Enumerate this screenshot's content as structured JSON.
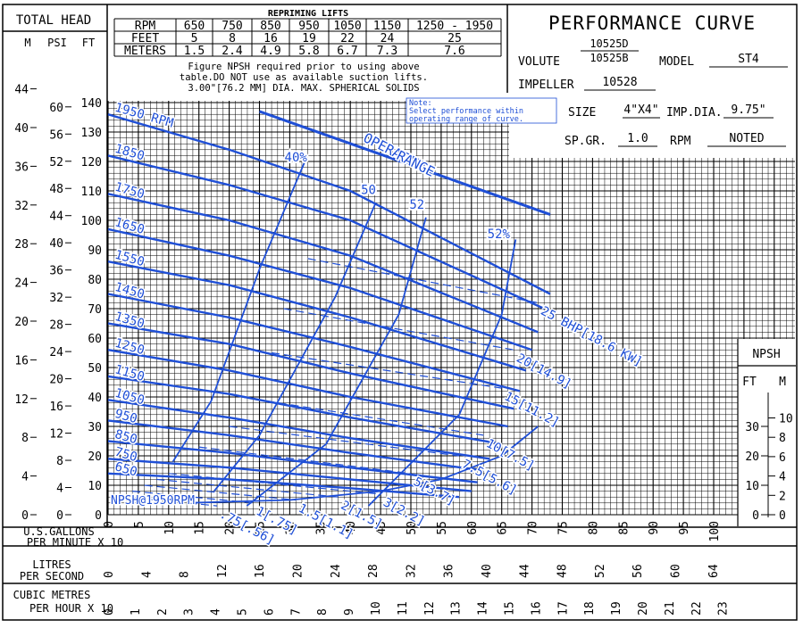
{
  "chart_data": {
    "type": "line",
    "title": "PERFORMANCE CURVE",
    "xlabel": "U.S.GALLONS PER MINUTE X 10",
    "ylabel": "TOTAL HEAD",
    "header": {
      "total_head": "TOTAL HEAD",
      "unit_m": "M",
      "unit_psi": "PSI",
      "unit_ft": "FT",
      "npsh": "NPSH",
      "npsh_ft": "FT",
      "npsh_m": "M"
    },
    "repriming": {
      "title": "REPRIMING LIFTS",
      "rows": [
        [
          "RPM",
          "650",
          "750",
          "850",
          "950",
          "1050",
          "1150",
          "1250 - 1950"
        ],
        [
          "FEET",
          "5",
          "8",
          "16",
          "19",
          "22",
          "24",
          "25"
        ],
        [
          "METERS",
          "1.5",
          "2.4",
          "4.9",
          "5.8",
          "6.7",
          "7.3",
          "7.6"
        ]
      ],
      "note": [
        "Figure NPSH required prior to using above",
        "table.DO NOT use as available suction lifts.",
        "3.00\"[76.2 MM] DIA. MAX. SPHERICAL SOLIDS"
      ]
    },
    "info": {
      "volute_label": "VOLUTE",
      "volute_top": "10525D",
      "volute_bottom": "10525B",
      "model_label": "MODEL",
      "model": "ST4",
      "impeller_label": "IMPELLER",
      "impeller": "10528",
      "size_label": "SIZE",
      "size": "4\"X4\"",
      "impdia_label": "IMP.DIA.",
      "impdia": "9.75\"",
      "spgr_label": "SP.GR.",
      "spgr": "1.0",
      "rpm_label": "RPM",
      "rpm": "NOTED"
    },
    "note_box": [
      "Note:",
      "Select performance within",
      "operating range of curve."
    ],
    "axes": {
      "x_gpm": {
        "ticks": [
          0,
          5,
          10,
          15,
          20,
          25,
          30,
          35,
          40,
          45,
          50,
          55,
          60,
          65,
          70,
          75,
          80,
          85,
          90,
          95,
          100
        ],
        "range": [
          0,
          100
        ]
      },
      "x_lps": {
        "label": [
          "LITRES",
          "PER SECOND"
        ],
        "ticks": [
          0,
          4,
          8,
          12,
          16,
          20,
          24,
          28,
          32,
          36,
          40,
          44,
          48,
          52,
          56,
          60,
          64
        ]
      },
      "x_m3h": {
        "label": [
          "CUBIC METRES",
          "PER HOUR X 10"
        ],
        "ticks": [
          0,
          1,
          2,
          3,
          4,
          5,
          6,
          7,
          8,
          9,
          10,
          11,
          12,
          13,
          14,
          15,
          16,
          17,
          18,
          19,
          20,
          21,
          22,
          23
        ]
      },
      "y_ft": {
        "ticks": [
          0,
          10,
          20,
          30,
          40,
          50,
          60,
          70,
          80,
          90,
          100,
          110,
          120,
          130,
          140
        ],
        "range": [
          0,
          140
        ]
      },
      "y_psi": {
        "ticks": [
          0,
          4,
          8,
          12,
          16,
          20,
          24,
          28,
          32,
          36,
          40,
          44,
          48,
          52,
          56,
          60
        ]
      },
      "y_m": {
        "ticks": [
          0,
          4,
          8,
          12,
          16,
          20,
          24,
          28,
          32,
          36,
          40,
          44
        ]
      },
      "npsh_ft": {
        "ticks": [
          0,
          10,
          20,
          30
        ]
      },
      "npsh_m": {
        "ticks": [
          0,
          2,
          4,
          6,
          8,
          10
        ]
      }
    },
    "series": [
      {
        "name": "1950 RPM",
        "x": [
          0,
          20,
          40,
          73
        ],
        "y": [
          136,
          124,
          110,
          75
        ]
      },
      {
        "name": "1850",
        "x": [
          0,
          20,
          40,
          72
        ],
        "y": [
          122,
          112,
          100,
          70
        ]
      },
      {
        "name": "1750",
        "x": [
          0,
          20,
          40,
          71
        ],
        "y": [
          109,
          100,
          88,
          62
        ]
      },
      {
        "name": "1650",
        "x": [
          0,
          20,
          40,
          70
        ],
        "y": [
          97,
          88,
          77,
          56
        ]
      },
      {
        "name": "1550",
        "x": [
          0,
          20,
          40,
          69
        ],
        "y": [
          86,
          78,
          67,
          49
        ]
      },
      {
        "name": "1450",
        "x": [
          0,
          20,
          40,
          68
        ],
        "y": [
          75,
          67,
          57,
          42
        ]
      },
      {
        "name": "1350",
        "x": [
          0,
          20,
          40,
          67
        ],
        "y": [
          65,
          58,
          48,
          36
        ]
      },
      {
        "name": "1250",
        "x": [
          0,
          20,
          40,
          66
        ],
        "y": [
          56,
          49,
          40,
          30
        ]
      },
      {
        "name": "1150",
        "x": [
          0,
          20,
          40,
          65
        ],
        "y": [
          47,
          41,
          33,
          24
        ]
      },
      {
        "name": "1050",
        "x": [
          0,
          20,
          40,
          63
        ],
        "y": [
          39,
          33,
          26,
          19
        ]
      },
      {
        "name": "950",
        "x": [
          0,
          20,
          40,
          62
        ],
        "y": [
          32,
          27,
          21,
          15
        ]
      },
      {
        "name": "850",
        "x": [
          0,
          20,
          40,
          61
        ],
        "y": [
          25,
          21,
          16,
          11
        ]
      },
      {
        "name": "750",
        "x": [
          0,
          20,
          40,
          60
        ],
        "y": [
          19,
          16,
          12,
          8
        ]
      },
      {
        "name": "650",
        "x": [
          0,
          20,
          40,
          58
        ],
        "y": [
          14,
          12,
          9,
          6
        ]
      }
    ],
    "efficiency": [
      {
        "label": "40%",
        "x": [
          10.7,
          17.0,
          25.1,
          32.9
        ],
        "y": [
          18.0,
          38.5,
          84.0,
          122.0
        ],
        "label_x": 31,
        "label_y": 120
      },
      {
        "label": "50",
        "x": [
          17.5,
          25.0,
          37.5,
          44.2
        ],
        "y": [
          8.0,
          27.0,
          74.0,
          106.0
        ],
        "label_x": 43,
        "label_y": 109
      },
      {
        "label": "52",
        "x": [
          22.9,
          36.0,
          48.0,
          52.5
        ],
        "y": [
          3.0,
          24.0,
          68.0,
          101.0
        ],
        "label_x": 51,
        "label_y": 104
      },
      {
        "label": "52%",
        "x": [
          43.0,
          58.0,
          65.0,
          67.3
        ],
        "y": [
          3.0,
          34.0,
          68.0,
          93.5
        ],
        "label_x": 64.5,
        "label_y": 94
      }
    ],
    "bhp_lines": [
      {
        "label": "25 BHP[18.6 KW]",
        "x": [
          33,
          71
        ],
        "y": [
          87,
          72
        ]
      },
      {
        "label": "20[14.9]",
        "x": [
          29,
          67
        ],
        "y": [
          70,
          56
        ]
      },
      {
        "label": "15[11.2]",
        "x": [
          27,
          65
        ],
        "y": [
          55,
          43
        ]
      },
      {
        "label": "10[7.5]",
        "x": [
          22,
          62
        ],
        "y": [
          40,
          27
        ]
      },
      {
        "label": "7.5[5.6]",
        "x": [
          20,
          58
        ],
        "y": [
          30,
          20
        ]
      },
      {
        "label": "5[3.7]",
        "x": [
          15,
          50
        ],
        "y": [
          23,
          14
        ]
      },
      {
        "label": "3[2.2]",
        "x": [
          10,
          45
        ],
        "y": [
          14,
          7
        ]
      },
      {
        "label": "2[1.5]",
        "x": [
          8,
          38
        ],
        "y": [
          12,
          6
        ]
      },
      {
        "label": "1.5[1.1]",
        "x": [
          6,
          31
        ],
        "y": [
          10,
          5
        ]
      },
      {
        "label": "1[.75]",
        "x": [
          4,
          24
        ],
        "y": [
          8,
          4
        ]
      },
      {
        "label": ".75[.56]",
        "x": [
          3,
          18
        ],
        "y": [
          6,
          3
        ]
      }
    ],
    "npsh_curve": {
      "label": "NPSH@1950RPM",
      "x": [
        13,
        30,
        45,
        55,
        65,
        71
      ],
      "y": [
        4,
        5,
        8,
        12,
        20,
        30
      ]
    },
    "operating_range": {
      "label": "OPERATING RANGE",
      "x": [
        25,
        73
      ],
      "y": [
        137,
        102
      ]
    }
  }
}
